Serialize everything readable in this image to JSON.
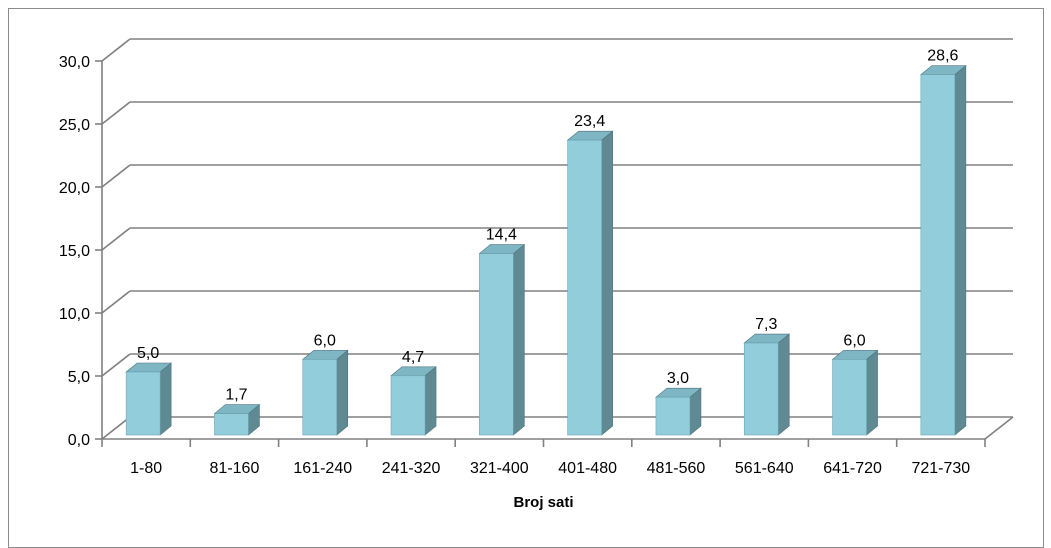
{
  "chart_data": {
    "type": "bar",
    "title": "",
    "xlabel": "Broj sati",
    "ylabel": "",
    "categories": [
      "1-80",
      "81-160",
      "161-240",
      "241-320",
      "321-400",
      "401-480",
      "481-560",
      "561-640",
      "641-720",
      "721-730"
    ],
    "values": [
      5.0,
      1.7,
      6.0,
      4.7,
      14.4,
      23.4,
      3.0,
      7.3,
      6.0,
      28.6
    ],
    "value_labels": [
      "5,0",
      "1,7",
      "6,0",
      "4,7",
      "14,4",
      "23,4",
      "3,0",
      "7,3",
      "6,0",
      "28,6"
    ],
    "ylim": [
      0,
      30
    ],
    "y_ticks": [
      0,
      5,
      10,
      15,
      20,
      25,
      30
    ],
    "y_tick_labels": [
      "0,0",
      "5,0",
      "10,0",
      "15,0",
      "20,0",
      "25,0",
      "30,0"
    ],
    "grid": true,
    "legend": "none",
    "style": "3d-column",
    "colors": {
      "bar_front": "#92cddc",
      "bar_side": "#5f8a94",
      "bar_top": "#7fb6c3",
      "grid": "#808080"
    }
  }
}
